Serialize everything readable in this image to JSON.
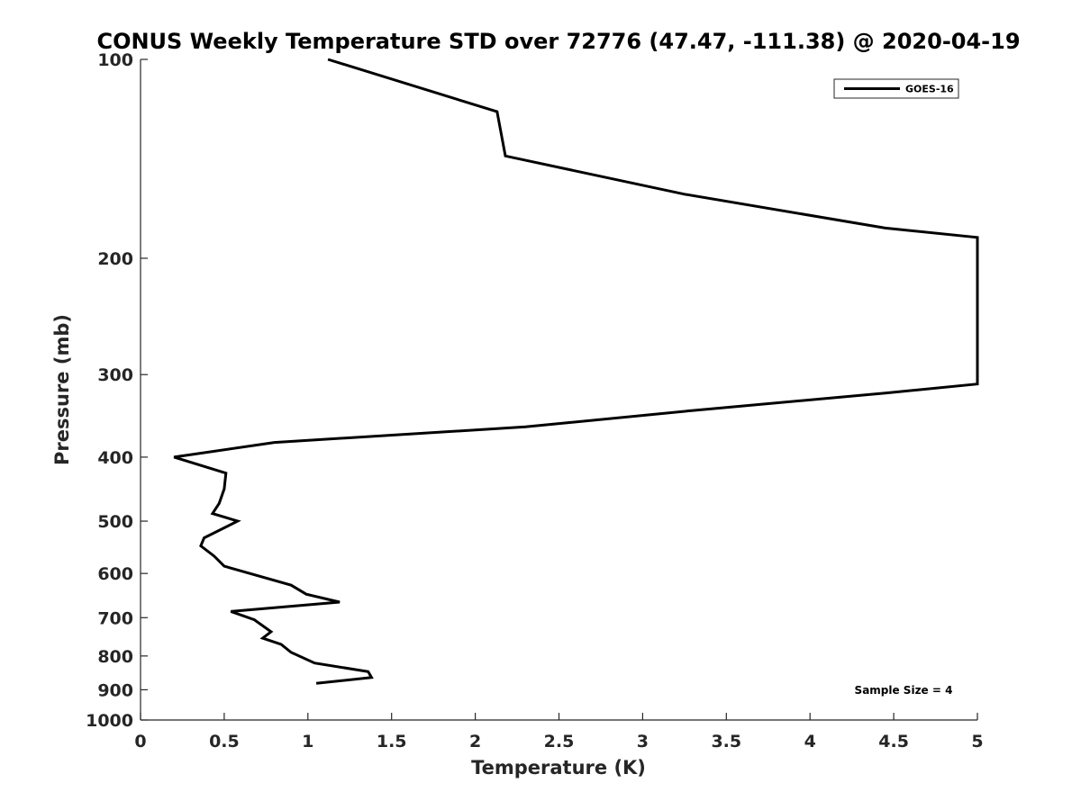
{
  "chart_data": {
    "type": "line",
    "title": "CONUS Weekly Temperature STD over 72776 (47.47, -111.38) @ 2020-04-19",
    "xlabel": "Temperature (K)",
    "ylabel": "Pressure (mb)",
    "xlim": [
      0,
      5
    ],
    "ylim": [
      100,
      1000
    ],
    "y_scale": "log",
    "y_reversed": true,
    "grid": false,
    "legend_position": "top-right",
    "x_ticks": [
      "0",
      "0.5",
      "1",
      "1.5",
      "2",
      "2.5",
      "3",
      "3.5",
      "4",
      "4.5",
      "5"
    ],
    "y_ticks": [
      "100",
      "200",
      "300",
      "400",
      "500",
      "600",
      "700",
      "800",
      "900",
      "1000"
    ],
    "series": [
      {
        "name": "GOES-16",
        "color": "#000000",
        "points": [
          [
            1.12,
            100
          ],
          [
            2.13,
            120
          ],
          [
            2.18,
            140
          ],
          [
            3.25,
            160
          ],
          [
            4.45,
            180
          ],
          [
            5.0,
            186
          ],
          [
            5.0,
            310
          ],
          [
            4.45,
            320
          ],
          [
            3.3,
            340
          ],
          [
            2.3,
            360
          ],
          [
            0.8,
            380
          ],
          [
            0.2,
            400
          ],
          [
            0.51,
            423
          ],
          [
            0.5,
            447
          ],
          [
            0.47,
            470
          ],
          [
            0.43,
            487
          ],
          [
            0.58,
            500
          ],
          [
            0.38,
            530
          ],
          [
            0.36,
            545
          ],
          [
            0.44,
            565
          ],
          [
            0.5,
            585
          ],
          [
            0.9,
            625
          ],
          [
            0.99,
            645
          ],
          [
            1.19,
            663
          ],
          [
            0.54,
            685
          ],
          [
            0.68,
            705
          ],
          [
            0.78,
            735
          ],
          [
            0.73,
            752
          ],
          [
            0.84,
            768
          ],
          [
            0.9,
            790
          ],
          [
            1.04,
            820
          ],
          [
            1.36,
            845
          ],
          [
            1.38,
            862
          ],
          [
            1.05,
            880
          ]
        ]
      }
    ],
    "annotations": [
      "Sample Size = 4"
    ]
  }
}
